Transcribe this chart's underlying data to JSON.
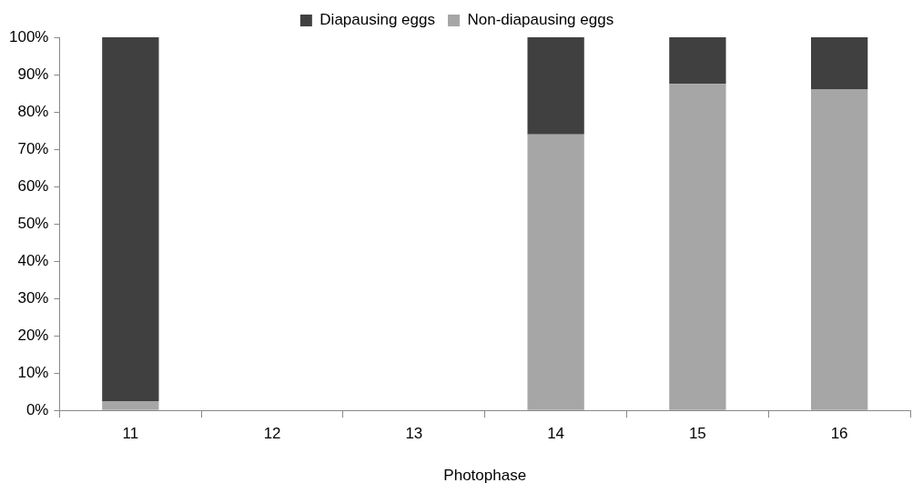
{
  "chart_data": {
    "type": "bar",
    "stacked": true,
    "xlabel": "Photophase",
    "categories": [
      "11",
      "12",
      "13",
      "14",
      "15",
      "16"
    ],
    "series": [
      {
        "name": "Non-diapausing eggs",
        "color": "#a6a6a6",
        "values": [
          2.5,
          null,
          null,
          74,
          87.5,
          86
        ]
      },
      {
        "name": "Diapausing eggs",
        "color": "#404040",
        "values": [
          97.5,
          null,
          null,
          26,
          12.5,
          14
        ]
      }
    ],
    "ylim": [
      0,
      100
    ],
    "yticks": [
      {
        "value": 0,
        "label": "0%"
      },
      {
        "value": 10,
        "label": "10%"
      },
      {
        "value": 20,
        "label": "20%"
      },
      {
        "value": 30,
        "label": "30%"
      },
      {
        "value": 40,
        "label": "40%"
      },
      {
        "value": 50,
        "label": "50%"
      },
      {
        "value": 60,
        "label": "60%"
      },
      {
        "value": 70,
        "label": "70%"
      },
      {
        "value": 80,
        "label": "80%"
      },
      {
        "value": 90,
        "label": "90%"
      },
      {
        "value": 100,
        "label": "100%"
      }
    ],
    "grid": false,
    "legend": "top"
  }
}
